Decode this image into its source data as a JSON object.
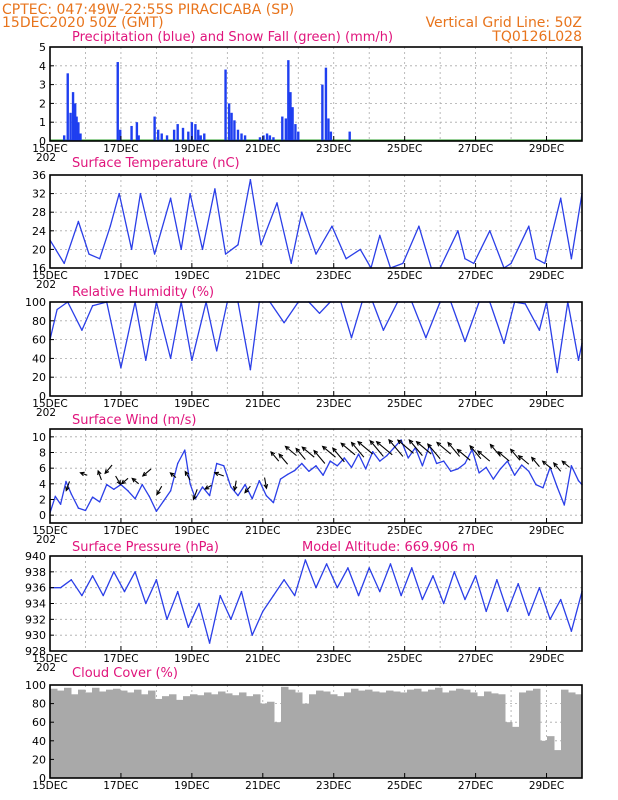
{
  "header": {
    "line1_left": "CPTEC:   047:49W-22:55S  PIRACICABA (SP)",
    "line2_left": "15DEC2020 50Z (GMT)",
    "line2_right": "Vertical Grid Line: 50Z",
    "line3_right": "TQ0126L028"
  },
  "colors": {
    "header": "#e8741c",
    "panel_title": "#e0147c",
    "series_line": "#2b3fe8",
    "precipitation_bar": "#1f3ff0",
    "snow_line": "#2ca02c",
    "cloud_fill": "#a9a9a9",
    "grid": "#a9a9a9"
  },
  "x_axis": {
    "tick_labels": [
      "15DEC",
      "17DEC",
      "19DEC",
      "21DEC",
      "23DEC",
      "25DEC",
      "27DEC",
      "29DEC"
    ],
    "tick_days": [
      15,
      17,
      19,
      21,
      23,
      25,
      27,
      29
    ],
    "xlim": [
      15,
      30.0
    ],
    "vertical_grid_every_days": 1,
    "clipped_year_label": "202"
  },
  "chart_data": [
    {
      "id": "precip",
      "type": "bar",
      "title": "Precipitation (blue) and Snow Fall (green) (mm/h)",
      "ylim": [
        0,
        5
      ],
      "yticks": [
        0,
        1,
        2,
        3,
        4,
        5
      ],
      "grid": true,
      "x": [
        15.4,
        15.5,
        15.58,
        15.65,
        15.71,
        15.75,
        15.8,
        15.86,
        16.91,
        16.98,
        17.3,
        17.45,
        17.5,
        17.95,
        18.05,
        18.15,
        18.3,
        18.5,
        18.6,
        18.75,
        18.9,
        19.0,
        19.1,
        19.18,
        19.25,
        19.35,
        19.95,
        20.05,
        20.12,
        20.2,
        20.3,
        20.4,
        20.5,
        20.92,
        21.02,
        21.12,
        21.2,
        21.3,
        21.55,
        21.65,
        21.72,
        21.78,
        21.84,
        21.92,
        22.0,
        22.68,
        22.78,
        22.85,
        22.92,
        23.45
      ],
      "values": [
        0.3,
        3.6,
        1.5,
        2.6,
        2.0,
        1.3,
        1.0,
        0.4,
        4.2,
        0.6,
        0.8,
        1.0,
        0.3,
        1.3,
        0.6,
        0.4,
        0.3,
        0.6,
        0.9,
        0.7,
        0.5,
        1.0,
        0.9,
        0.6,
        0.3,
        0.4,
        3.8,
        2.0,
        1.5,
        1.1,
        0.6,
        0.4,
        0.3,
        0.2,
        0.3,
        0.4,
        0.3,
        0.2,
        1.3,
        1.2,
        4.3,
        2.6,
        1.8,
        0.9,
        0.5,
        3.0,
        3.9,
        1.2,
        0.5,
        0.5
      ],
      "snow_fall": "0 throughout"
    },
    {
      "id": "temperature",
      "type": "line",
      "title": "Surface Temperature (nC)",
      "ylim": [
        16,
        36
      ],
      "yticks": [
        16,
        20,
        24,
        28,
        32,
        36
      ],
      "grid": true,
      "x": [
        15.0,
        15.4,
        15.8,
        16.1,
        16.4,
        16.7,
        16.95,
        17.3,
        17.55,
        17.95,
        18.4,
        18.7,
        18.95,
        19.3,
        19.65,
        19.95,
        20.3,
        20.65,
        20.95,
        21.4,
        21.8,
        22.1,
        22.5,
        22.95,
        23.35,
        23.75,
        24.05,
        24.3,
        24.6,
        24.95,
        25.4,
        25.75,
        26.0,
        26.5,
        26.7,
        26.95,
        27.4,
        27.8,
        28.0,
        28.5,
        28.7,
        28.95,
        29.4,
        29.7,
        30.0
      ],
      "values": [
        22,
        17,
        26,
        19,
        18,
        25,
        32,
        20,
        32,
        19,
        31,
        20,
        32,
        20,
        33,
        19,
        21,
        35,
        21,
        30,
        17,
        28,
        19,
        25,
        18,
        20,
        16,
        23,
        16,
        17,
        25,
        16,
        16,
        24,
        18,
        17,
        24,
        16,
        17,
        25,
        18,
        17,
        31,
        18,
        32
      ],
      "line_color": "#2b3fe8"
    },
    {
      "id": "humidity",
      "type": "line",
      "title": "Relative Humidity (%)",
      "ylim": [
        0,
        100
      ],
      "yticks": [
        0,
        20,
        40,
        60,
        80,
        100
      ],
      "grid": true,
      "x": [
        15.0,
        15.2,
        15.5,
        15.9,
        16.2,
        16.6,
        17.0,
        17.4,
        17.7,
        18.0,
        18.4,
        18.7,
        19.0,
        19.4,
        19.7,
        20.0,
        20.3,
        20.65,
        20.9,
        21.2,
        21.6,
        22.0,
        22.3,
        22.6,
        22.9,
        23.2,
        23.5,
        23.8,
        24.1,
        24.4,
        24.8,
        25.2,
        25.6,
        26.0,
        26.3,
        26.7,
        27.1,
        27.4,
        27.8,
        28.1,
        28.4,
        28.8,
        29.0,
        29.3,
        29.6,
        29.9,
        30.0
      ],
      "values": [
        60,
        92,
        100,
        70,
        96,
        100,
        30,
        100,
        38,
        100,
        40,
        100,
        38,
        100,
        48,
        100,
        100,
        28,
        100,
        100,
        78,
        100,
        100,
        88,
        100,
        100,
        62,
        100,
        100,
        70,
        100,
        100,
        62,
        100,
        100,
        58,
        100,
        100,
        56,
        100,
        98,
        70,
        100,
        25,
        100,
        38,
        56
      ],
      "line_color": "#2b3fe8"
    },
    {
      "id": "wind",
      "type": "line",
      "title": "Surface Wind (m/s)",
      "ylim": [
        -1,
        11
      ],
      "yticks": [
        0,
        2,
        4,
        6,
        8,
        10
      ],
      "grid": true,
      "x": [
        15.0,
        15.15,
        15.3,
        15.45,
        15.6,
        15.8,
        16.0,
        16.2,
        16.4,
        16.6,
        16.8,
        17.0,
        17.2,
        17.4,
        17.6,
        17.8,
        18.0,
        18.2,
        18.4,
        18.6,
        18.8,
        18.95,
        19.1,
        19.3,
        19.5,
        19.7,
        19.9,
        20.1,
        20.3,
        20.5,
        20.7,
        20.9,
        21.1,
        21.3,
        21.5,
        21.7,
        21.9,
        22.1,
        22.3,
        22.5,
        22.7,
        22.9,
        23.1,
        23.3,
        23.5,
        23.7,
        23.9,
        24.1,
        24.3,
        24.5,
        24.7,
        24.9,
        25.1,
        25.3,
        25.5,
        25.7,
        25.9,
        26.1,
        26.3,
        26.5,
        26.7,
        26.9,
        27.1,
        27.3,
        27.5,
        27.7,
        27.9,
        28.1,
        28.3,
        28.5,
        28.7,
        28.9,
        29.1,
        29.3,
        29.5,
        29.7,
        29.9,
        30.0
      ],
      "values": [
        0.3,
        2.4,
        1.4,
        4.3,
        2.7,
        0.9,
        0.6,
        2.3,
        1.7,
        3.9,
        3.3,
        3.9,
        3.1,
        2.1,
        3.9,
        2.4,
        0.5,
        1.8,
        3.1,
        6.6,
        8.3,
        4.0,
        2.1,
        3.6,
        2.5,
        6.6,
        6.3,
        3.6,
        2.5,
        3.9,
        2.1,
        4.4,
        2.5,
        1.6,
        4.6,
        5.2,
        5.7,
        6.6,
        5.6,
        6.3,
        5.1,
        6.9,
        6.3,
        7.3,
        6.1,
        7.8,
        5.9,
        8.1,
        6.9,
        7.6,
        8.6,
        9.6,
        7.3,
        8.6,
        6.3,
        8.9,
        6.6,
        6.9,
        5.6,
        5.9,
        6.6,
        8.4,
        5.4,
        6.1,
        4.6,
        5.9,
        6.9,
        5.1,
        6.4,
        5.6,
        3.9,
        3.5,
        6.1,
        3.6,
        1.3,
        6.3,
        4.4,
        3.9
      ],
      "wind_arrows_x": [
        15.55,
        16.05,
        16.45,
        16.75,
        16.85,
        17.2,
        17.5,
        17.85,
        18.15,
        18.55,
        18.95,
        19.15,
        19.55,
        19.9,
        20.25,
        20.65,
        21.05,
        21.45,
        21.7,
        21.95,
        22.2,
        22.45,
        22.75,
        23.05,
        23.3,
        23.6,
        23.85,
        24.1,
        24.4,
        24.65,
        24.95,
        25.25,
        25.5,
        25.75,
        26.0,
        26.3,
        26.55,
        26.85,
        27.15,
        27.4,
        27.7,
        27.95,
        28.25,
        28.5,
        28.8,
        29.15,
        29.4,
        29.65
      ],
      "wind_arrows_y": [
        4.3,
        5.1,
        4.5,
        6.4,
        5.0,
        4.7,
        4.0,
        5.9,
        3.7,
        4.8,
        4.5,
        3.3,
        3.8,
        5.0,
        4.4,
        3.7,
        4.8,
        6.9,
        6.5,
        7.6,
        7.1,
        7.4,
        6.6,
        7.4,
        6.8,
        7.7,
        7.4,
        7.8,
        7.5,
        7.7,
        7.5,
        7.9,
        7.6,
        7.8,
        7.2,
        7.8,
        7.5,
        7.0,
        7.2,
        6.9,
        7.5,
        6.9,
        7.0,
        6.5,
        6.2,
        5.9,
        5.6,
        6.1
      ],
      "wind_arrows_angle_deg": [
        110,
        200,
        250,
        130,
        60,
        140,
        220,
        140,
        120,
        220,
        240,
        110,
        150,
        200,
        100,
        130,
        80,
        230,
        230,
        220,
        230,
        220,
        230,
        220,
        230,
        220,
        230,
        220,
        230,
        220,
        230,
        220,
        230,
        220,
        230,
        220,
        230,
        220,
        230,
        220,
        230,
        220,
        230,
        220,
        230,
        220,
        230,
        220
      ],
      "wind_arrows_len_ms": [
        0.8,
        0.6,
        0.8,
        0.9,
        0.8,
        0.7,
        0.7,
        0.9,
        0.8,
        0.6,
        0.8,
        0.9,
        0.6,
        0.8,
        0.8,
        0.7,
        0.9,
        1.0,
        1.1,
        1.2,
        1.2,
        1.3,
        1.4,
        1.4,
        1.5,
        1.5,
        1.6,
        1.6,
        1.7,
        1.7,
        1.8,
        1.7,
        1.7,
        1.6,
        1.6,
        1.5,
        1.5,
        1.4,
        1.4,
        1.3,
        1.3,
        1.2,
        1.2,
        1.1,
        1.0,
        1.0,
        0.9,
        0.8
      ],
      "line_color": "#2b3fe8"
    },
    {
      "id": "pressure",
      "type": "line",
      "title": "Surface Pressure (hPa)",
      "annotation": "Model Altitude: 669.906 m",
      "ylim": [
        928,
        940
      ],
      "yticks": [
        928,
        930,
        932,
        934,
        936,
        938,
        940
      ],
      "grid": true,
      "x": [
        15.0,
        15.3,
        15.6,
        15.9,
        16.2,
        16.5,
        16.8,
        17.1,
        17.4,
        17.7,
        18.0,
        18.3,
        18.6,
        18.9,
        19.2,
        19.5,
        19.8,
        20.1,
        20.4,
        20.7,
        21.0,
        21.3,
        21.6,
        21.9,
        22.2,
        22.5,
        22.8,
        23.1,
        23.4,
        23.7,
        24.0,
        24.3,
        24.6,
        24.9,
        25.2,
        25.5,
        25.8,
        26.1,
        26.4,
        26.7,
        27.0,
        27.3,
        27.6,
        27.9,
        28.2,
        28.5,
        28.8,
        29.1,
        29.4,
        29.7,
        30.0
      ],
      "values": [
        936,
        936,
        937,
        935,
        937.5,
        935,
        938,
        935.5,
        938,
        934,
        937,
        932,
        935.5,
        931,
        934,
        929,
        935,
        932,
        935.5,
        930,
        933,
        935,
        937,
        935,
        939.5,
        936,
        939,
        936,
        938.5,
        935,
        938.5,
        935.5,
        939,
        935,
        938.5,
        934.5,
        937.5,
        934,
        938,
        934.5,
        937.5,
        933,
        937,
        933,
        936.5,
        932.5,
        936,
        932,
        934.5,
        930.5,
        935.5
      ],
      "line_color": "#2b3fe8"
    },
    {
      "id": "cloud",
      "type": "bar",
      "title": "Cloud Cover (%)",
      "ylim": [
        0,
        100
      ],
      "yticks": [
        0,
        20,
        40,
        60,
        80,
        100
      ],
      "grid": true,
      "x": [
        15.0,
        15.2,
        15.4,
        15.6,
        15.8,
        16.0,
        16.2,
        16.4,
        16.6,
        16.8,
        17.0,
        17.2,
        17.4,
        17.6,
        17.8,
        18.0,
        18.2,
        18.4,
        18.6,
        18.8,
        19.0,
        19.2,
        19.4,
        19.6,
        19.8,
        20.0,
        20.2,
        20.4,
        20.6,
        20.8,
        21.0,
        21.2,
        21.4,
        21.6,
        21.8,
        22.0,
        22.2,
        22.4,
        22.6,
        22.8,
        23.0,
        23.2,
        23.4,
        23.6,
        23.8,
        24.0,
        24.2,
        24.4,
        24.6,
        24.8,
        25.0,
        25.2,
        25.4,
        25.6,
        25.8,
        26.0,
        26.2,
        26.4,
        26.6,
        26.8,
        27.0,
        27.2,
        27.4,
        27.6,
        27.8,
        28.0,
        28.2,
        28.4,
        28.6,
        28.8,
        29.0,
        29.2,
        29.4,
        29.6,
        29.8,
        30.0
      ],
      "values": [
        96,
        94,
        97,
        90,
        95,
        92,
        97,
        93,
        95,
        96,
        94,
        92,
        95,
        90,
        94,
        85,
        88,
        90,
        84,
        88,
        90,
        89,
        92,
        90,
        93,
        91,
        89,
        92,
        88,
        90,
        80,
        82,
        60,
        98,
        95,
        92,
        80,
        90,
        94,
        93,
        90,
        88,
        92,
        96,
        94,
        95,
        93,
        92,
        94,
        93,
        92,
        95,
        96,
        93,
        95,
        97,
        92,
        94,
        96,
        95,
        92,
        88,
        93,
        91,
        90,
        60,
        55,
        92,
        94,
        96,
        40,
        45,
        30,
        95,
        92,
        90
      ],
      "fill_color": "#a9a9a9"
    }
  ]
}
